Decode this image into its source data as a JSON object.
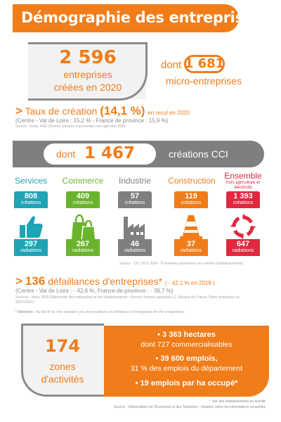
{
  "header": {
    "title": "Démographie des entreprises"
  },
  "creations": {
    "number": "2 596",
    "label_line1": "entreprises",
    "label_line2": "créées en 2020",
    "micro_prefix": "dont",
    "micro_number": "1 681",
    "micro_label": "micro-entreprises"
  },
  "taux": {
    "arrow": ">",
    "label": "Taux de création",
    "value": "(14,1 %)",
    "note": "en recul en 2020",
    "comparison": "(Centre - Val de Loire : 15,2 % - France de province : 15,9 %)",
    "source": "Source : Insee, REE (Sirene) activités marchandes non agricoles  2020"
  },
  "cci": {
    "prefix": "dont",
    "number": "1 467",
    "label": "créations CCI",
    "source": "Source : CCI, RCS 2020- 74 données provisoires (en nombre d'établissements)"
  },
  "sectors": [
    {
      "name": "Services",
      "subtitle": "",
      "creations": "808",
      "creations_label": "créations",
      "radiations": "297",
      "radiations_label": "radiations",
      "color": "#1fa3b5",
      "icon": "thumbs-up-icon"
    },
    {
      "name": "Commerce",
      "subtitle": "",
      "creations": "409",
      "creations_label": "créations",
      "radiations": "267",
      "radiations_label": "radiations",
      "color": "#6ab42d",
      "icon": "shopping-bags-icon"
    },
    {
      "name": "Industrie",
      "subtitle": "",
      "creations": "57",
      "creations_label": "créations",
      "radiations": "46",
      "radiations_label": "radiations",
      "color": "#7f7f7f",
      "icon": "factory-icon"
    },
    {
      "name": "Construction",
      "subtitle": "",
      "creations": "119",
      "creations_label": "créations",
      "radiations": "37",
      "radiations_label": "radiations",
      "color": "#f07d1a",
      "icon": "traffic-cone-icon"
    },
    {
      "name": "Ensemble",
      "subtitle": "hors agriculture et électricité",
      "creations": "1 393",
      "creations_label": "créations",
      "radiations": "647",
      "radiations_label": "radiations",
      "color": "#e0293f",
      "icon": "cycle-arrows-icon"
    }
  ],
  "defaillances": {
    "arrow": ">",
    "number": "136",
    "label": "défaillances d'entreprises*",
    "note": "( - 42,1 % en 2018 )",
    "comparison": "(Centre - Val de Loire : - 42,6 %, France de province : - 39,7 %)",
    "source": "Sources : Insee, REE (Répertoire des entreprises et des établissements - Sirene) compris agriculture (), Banque de France, Fiben (extraction au 30/07/2021)",
    "attention_label": "* Attention :",
    "attention_text": "du fait de la crise sanitaire, peu de procédures de défaillance d'entreprises ont été enregistrées"
  },
  "zones": {
    "number": "174",
    "label_line1": "zones",
    "label_line2": "d'activités",
    "fact1_bold": "• 3 363 hectares",
    "fact1_text": "dont 727 commercialisables",
    "fact2_bold": "• 39 600 emplois,",
    "fact2_text": "31 % des emplois du département",
    "fact3_bold": "• 19 emplois par ha occupé*"
  },
  "footer": {
    "note": "* par des établissements en activité",
    "source": "Source : Observatoire de l'Économie et des Territoires - situation selon les informations recueillies"
  }
}
